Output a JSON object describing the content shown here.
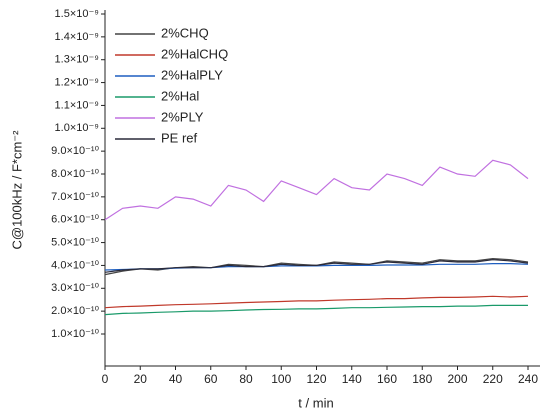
{
  "chart_data": {
    "type": "line",
    "x_label": "t / min",
    "y_label": "C@100kHz / F*cm⁻²",
    "x": [
      0,
      10,
      20,
      30,
      40,
      50,
      60,
      70,
      80,
      90,
      100,
      110,
      120,
      130,
      140,
      150,
      160,
      170,
      180,
      190,
      200,
      210,
      220,
      230,
      240
    ],
    "series": [
      {
        "name": "2%CHQ",
        "color": "#444444",
        "values": [
          3.6e-10,
          3.75e-10,
          3.85e-10,
          3.8e-10,
          3.9e-10,
          3.95e-10,
          3.9e-10,
          4.05e-10,
          4e-10,
          3.95e-10,
          4.1e-10,
          4.05e-10,
          4e-10,
          4.15e-10,
          4.1e-10,
          4.05e-10,
          4.2e-10,
          4.15e-10,
          4.1e-10,
          4.25e-10,
          4.2e-10,
          4.2e-10,
          4.3e-10,
          4.25e-10,
          4.15e-10
        ]
      },
      {
        "name": "2%HalCHQ",
        "color": "#c0392b",
        "values": [
          2.15e-10,
          2.2e-10,
          2.22e-10,
          2.25e-10,
          2.28e-10,
          2.3e-10,
          2.32e-10,
          2.35e-10,
          2.38e-10,
          2.4e-10,
          2.42e-10,
          2.45e-10,
          2.45e-10,
          2.48e-10,
          2.5e-10,
          2.52e-10,
          2.55e-10,
          2.55e-10,
          2.58e-10,
          2.6e-10,
          2.6e-10,
          2.62e-10,
          2.65e-10,
          2.62e-10,
          2.65e-10
        ]
      },
      {
        "name": "2%HalPLY",
        "color": "#1f5fc0",
        "values": [
          3.8e-10,
          3.82e-10,
          3.85e-10,
          3.85e-10,
          3.88e-10,
          3.9e-10,
          3.9e-10,
          3.95e-10,
          3.95e-10,
          3.95e-10,
          3.98e-10,
          3.98e-10,
          3.98e-10,
          4e-10,
          4e-10,
          4e-10,
          4.02e-10,
          4.02e-10,
          4.02e-10,
          4.05e-10,
          4.05e-10,
          4.05e-10,
          4.08e-10,
          4.08e-10,
          4.05e-10
        ]
      },
      {
        "name": "2%Hal",
        "color": "#1a9a6a",
        "values": [
          1.85e-10,
          1.9e-10,
          1.92e-10,
          1.95e-10,
          1.97e-10,
          2e-10,
          2e-10,
          2.02e-10,
          2.05e-10,
          2.07e-10,
          2.08e-10,
          2.1e-10,
          2.1e-10,
          2.12e-10,
          2.15e-10,
          2.15e-10,
          2.17e-10,
          2.18e-10,
          2.2e-10,
          2.2e-10,
          2.22e-10,
          2.22e-10,
          2.25e-10,
          2.25e-10,
          2.25e-10
        ]
      },
      {
        "name": "2%PLY",
        "color": "#c070e0",
        "values": [
          6e-10,
          6.5e-10,
          6.6e-10,
          6.5e-10,
          7e-10,
          6.9e-10,
          6.6e-10,
          7.5e-10,
          7.3e-10,
          6.8e-10,
          7.7e-10,
          7.4e-10,
          7.1e-10,
          7.8e-10,
          7.4e-10,
          7.3e-10,
          8e-10,
          7.8e-10,
          7.5e-10,
          8.3e-10,
          8e-10,
          7.9e-10,
          8.6e-10,
          8.4e-10,
          7.8e-10
        ]
      },
      {
        "name": "PE ref",
        "color": "#2a2a3a",
        "values": [
          3.7e-10,
          3.8e-10,
          3.85e-10,
          3.85e-10,
          3.9e-10,
          3.9e-10,
          3.9e-10,
          4e-10,
          3.95e-10,
          3.95e-10,
          4.05e-10,
          4e-10,
          4e-10,
          4.1e-10,
          4.05e-10,
          4.05e-10,
          4.15e-10,
          4.1e-10,
          4.05e-10,
          4.2e-10,
          4.15e-10,
          4.15e-10,
          4.25e-10,
          4.2e-10,
          4.1e-10
        ]
      }
    ],
    "xlim": [
      0,
      240
    ],
    "xticks": [
      0,
      20,
      40,
      60,
      80,
      100,
      120,
      140,
      160,
      180,
      200,
      220,
      240
    ],
    "ylim": [
      -4e-11,
      1.5e-09
    ],
    "yticks": [
      {
        "value": 1e-10,
        "label": "1.0×10⁻¹⁰"
      },
      {
        "value": 2e-10,
        "label": "2.0×10⁻¹⁰"
      },
      {
        "value": 3e-10,
        "label": "3.0×10⁻¹⁰"
      },
      {
        "value": 4e-10,
        "label": "4.0×10⁻¹⁰"
      },
      {
        "value": 5e-10,
        "label": "5.0×10⁻¹⁰"
      },
      {
        "value": 6e-10,
        "label": "6.0×10⁻¹⁰"
      },
      {
        "value": 7e-10,
        "label": "7.0×10⁻¹⁰"
      },
      {
        "value": 8e-10,
        "label": "8.0×10⁻¹⁰"
      },
      {
        "value": 9e-10,
        "label": "9.0×10⁻¹⁰"
      },
      {
        "value": 1e-09,
        "label": "1.0×10⁻⁹"
      },
      {
        "value": 1.1e-09,
        "label": "1.1×10⁻⁹"
      },
      {
        "value": 1.2e-09,
        "label": "1.2×10⁻⁹"
      },
      {
        "value": 1.3e-09,
        "label": "1.3×10⁻⁹"
      },
      {
        "value": 1.4e-09,
        "label": "1.4×10⁻⁹"
      },
      {
        "value": 1.5e-09,
        "label": "1.5×10⁻⁹"
      }
    ],
    "legend": "top-left",
    "grid": false
  }
}
